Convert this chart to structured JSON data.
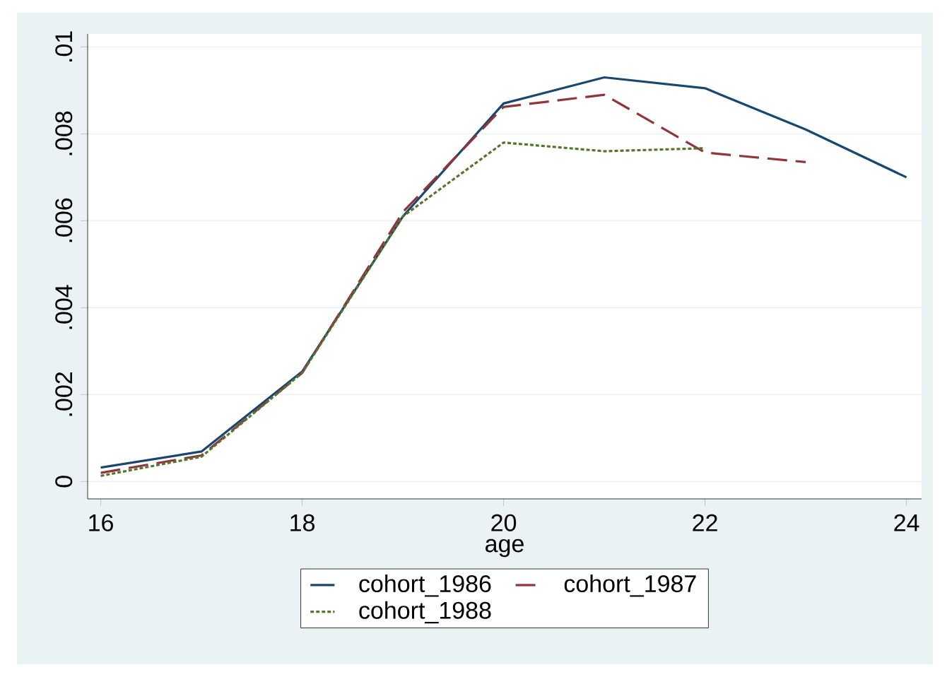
{
  "chart_data": {
    "type": "line",
    "xlabel": "age",
    "x": [
      16,
      17,
      18,
      19,
      20,
      21,
      22,
      23,
      24
    ],
    "series": [
      {
        "name": "cohort_1986",
        "color": "#1a476f",
        "line_style": "solid",
        "values": [
          0.00032,
          0.00069,
          0.00253,
          0.0061,
          0.0087,
          0.0093,
          0.00905,
          0.0081,
          0.007
        ]
      },
      {
        "name": "cohort_1987",
        "color": "#90353b",
        "line_style": "dashed",
        "values": [
          0.0002,
          0.0006,
          0.0025,
          0.0062,
          0.00862,
          0.0089,
          0.00757,
          0.00735,
          null
        ]
      },
      {
        "name": "cohort_1988",
        "color": "#55752f",
        "line_style": "dotted",
        "values": [
          0.00013,
          0.00057,
          0.0025,
          0.0061,
          0.0078,
          0.0076,
          0.00767,
          null,
          null
        ]
      }
    ],
    "xlim": [
      15.87,
      24.15
    ],
    "ylim": [
      -0.0004,
      0.0103
    ],
    "xticks": [
      16,
      18,
      20,
      22,
      24
    ],
    "yticks": [
      0,
      {
        "value": 0.002,
        "label": ".002"
      },
      {
        "value": 0.004,
        "label": ".004"
      },
      {
        "value": 0.006,
        "label": ".006"
      },
      {
        "value": 0.008,
        "label": ".008"
      },
      {
        "value": 0.01,
        "label": ".01"
      }
    ],
    "grid": "y",
    "legend": "bottom"
  }
}
